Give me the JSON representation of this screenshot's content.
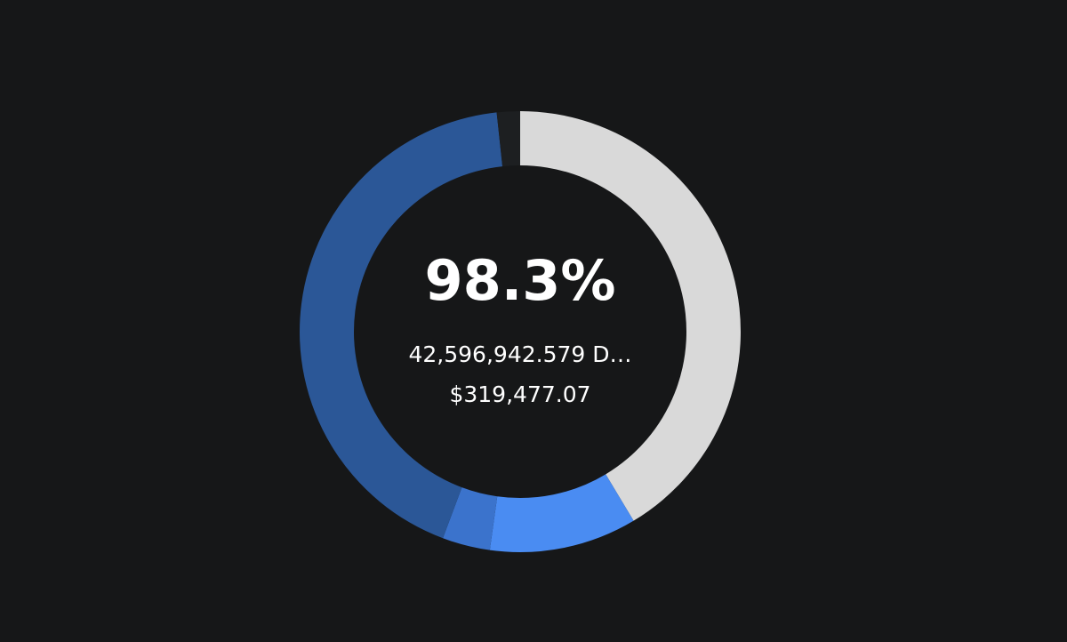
{
  "chart_data": {
    "type": "donut",
    "center_title": "98.3%",
    "center_lines": [
      "42,596,942.579 D…",
      "$319,477.07"
    ],
    "values": [
      41.4,
      10.8,
      3.5,
      42.6,
      1.7
    ],
    "colors": [
      "#d9d9d9",
      "#4a8cf2",
      "#3b73cc",
      "#2b5797",
      "#1d1f21"
    ]
  }
}
